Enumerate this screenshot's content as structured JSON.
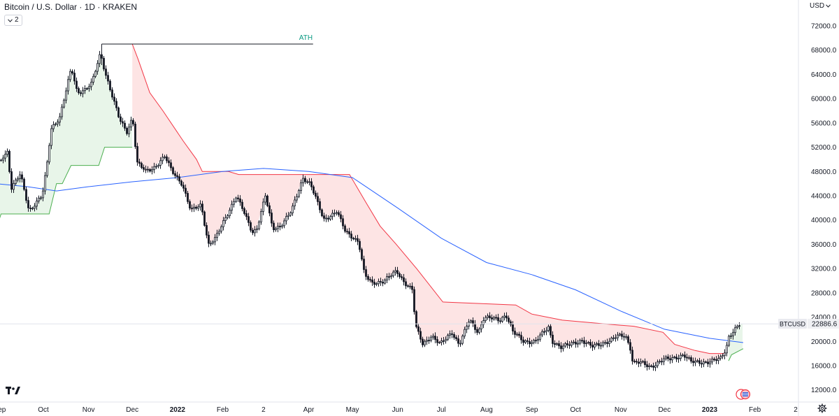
{
  "header": {
    "title": "Bitcoin / U.S. Dollar · 1D · KRAKEN",
    "indicator_count": "2",
    "currency": "USD"
  },
  "price_badge": {
    "symbol": "BTCUSD",
    "value": "22886.6"
  },
  "icons": {
    "logo": "tradingview-logo-icon",
    "chevron": "chevron-down-icon",
    "settings": "gear-icon",
    "flag": "us-flag-icon"
  },
  "colors": {
    "bullish_band": "#4caf50",
    "bearish_band": "#f23645",
    "bull_fill": "#e8f5e9",
    "bear_fill": "#fde4e4",
    "moving_average": "#2962ff",
    "candles": "#131722",
    "ath_label": "#089981"
  },
  "chart_data": {
    "type": "line",
    "title": "Bitcoin / U.S. Dollar · 1D · KRAKEN",
    "ylim": [
      10000,
      74000
    ],
    "y_ticks": [
      "12000.0",
      "16000.0",
      "20000.0",
      "24000.0",
      "28000.0",
      "32000.0",
      "36000.0",
      "40000.0",
      "44000.0",
      "48000.0",
      "52000.0",
      "56000.0",
      "60000.0",
      "64000.0",
      "68000.0",
      "72000.0"
    ],
    "x_ticks": [
      {
        "label": "Sep",
        "date": "2021-09-01"
      },
      {
        "label": "Oct",
        "date": "2021-10-01"
      },
      {
        "label": "Nov",
        "date": "2021-11-01"
      },
      {
        "label": "Dec",
        "date": "2021-12-01"
      },
      {
        "label": "2022",
        "date": "2022-01-01"
      },
      {
        "label": "Feb",
        "date": "2022-02-01"
      },
      {
        "label": "2",
        "date": "2022-03-01"
      },
      {
        "label": "Apr",
        "date": "2022-04-01"
      },
      {
        "label": "May",
        "date": "2022-05-01"
      },
      {
        "label": "Jun",
        "date": "2022-06-01"
      },
      {
        "label": "Jul",
        "date": "2022-07-01"
      },
      {
        "label": "Aug",
        "date": "2022-08-01"
      },
      {
        "label": "Sep",
        "date": "2022-09-01"
      },
      {
        "label": "Oct",
        "date": "2022-10-01"
      },
      {
        "label": "Nov",
        "date": "2022-11-01"
      },
      {
        "label": "Dec",
        "date": "2022-12-01"
      },
      {
        "label": "2023",
        "date": "2023-01-01"
      },
      {
        "label": "Feb",
        "date": "2023-02-01"
      },
      {
        "label": "2",
        "date": "2023-03-01"
      }
    ],
    "price_path": [
      [
        "2021-08-29",
        48000
      ],
      [
        "2021-09-03",
        50500
      ],
      [
        "2021-09-07",
        51500
      ],
      [
        "2021-09-08",
        45000
      ],
      [
        "2021-09-15",
        47500
      ],
      [
        "2021-09-21",
        41500
      ],
      [
        "2021-09-26",
        43000
      ],
      [
        "2021-09-30",
        44000
      ],
      [
        "2021-10-03",
        48500
      ],
      [
        "2021-10-06",
        55000
      ],
      [
        "2021-10-12",
        57000
      ],
      [
        "2021-10-16",
        61000
      ],
      [
        "2021-10-20",
        65000
      ],
      [
        "2021-10-24",
        61000
      ],
      [
        "2021-10-29",
        61500
      ],
      [
        "2021-11-03",
        62500
      ],
      [
        "2021-11-09",
        67500
      ],
      [
        "2021-11-12",
        64500
      ],
      [
        "2021-11-17",
        60500
      ],
      [
        "2021-11-22",
        56500
      ],
      [
        "2021-11-27",
        54500
      ],
      [
        "2021-12-01",
        57000
      ],
      [
        "2021-12-04",
        49500
      ],
      [
        "2021-12-10",
        48000
      ],
      [
        "2021-12-15",
        48500
      ],
      [
        "2021-12-23",
        50500
      ],
      [
        "2021-12-28",
        48000
      ],
      [
        "2022-01-04",
        46000
      ],
      [
        "2022-01-10",
        41500
      ],
      [
        "2022-01-17",
        42500
      ],
      [
        "2022-01-22",
        36000
      ],
      [
        "2022-01-27",
        37000
      ],
      [
        "2022-02-05",
        41500
      ],
      [
        "2022-02-10",
        44000
      ],
      [
        "2022-02-14",
        42000
      ],
      [
        "2022-02-21",
        38000
      ],
      [
        "2022-02-24",
        38500
      ],
      [
        "2022-03-02",
        44000
      ],
      [
        "2022-03-07",
        38500
      ],
      [
        "2022-03-12",
        39000
      ],
      [
        "2022-03-20",
        41500
      ],
      [
        "2022-03-28",
        47000
      ],
      [
        "2022-04-02",
        46000
      ],
      [
        "2022-04-11",
        40000
      ],
      [
        "2022-04-20",
        41500
      ],
      [
        "2022-04-26",
        38000
      ],
      [
        "2022-05-05",
        36500
      ],
      [
        "2022-05-09",
        31000
      ],
      [
        "2022-05-14",
        29500
      ],
      [
        "2022-05-22",
        30000
      ],
      [
        "2022-05-31",
        31500
      ],
      [
        "2022-06-05",
        29900
      ],
      [
        "2022-06-11",
        28500
      ],
      [
        "2022-06-13",
        22500
      ],
      [
        "2022-06-18",
        19500
      ],
      [
        "2022-06-24",
        21000
      ],
      [
        "2022-06-30",
        19500
      ],
      [
        "2022-07-08",
        21500
      ],
      [
        "2022-07-13",
        19500
      ],
      [
        "2022-07-20",
        23500
      ],
      [
        "2022-07-26",
        21500
      ],
      [
        "2022-07-30",
        24000
      ],
      [
        "2022-08-10",
        23500
      ],
      [
        "2022-08-14",
        24500
      ],
      [
        "2022-08-19",
        21500
      ],
      [
        "2022-08-26",
        20000
      ],
      [
        "2022-09-03",
        20000
      ],
      [
        "2022-09-09",
        21500
      ],
      [
        "2022-09-13",
        22500
      ],
      [
        "2022-09-14",
        20200
      ],
      [
        "2022-09-21",
        19000
      ],
      [
        "2022-10-05",
        20200
      ],
      [
        "2022-10-12",
        19100
      ],
      [
        "2022-10-25",
        20200
      ],
      [
        "2022-10-29",
        20800
      ],
      [
        "2022-11-04",
        21000
      ],
      [
        "2022-11-08",
        18500
      ],
      [
        "2022-11-09",
        16500
      ],
      [
        "2022-11-14",
        16500
      ],
      [
        "2022-11-21",
        15800
      ],
      [
        "2022-11-30",
        17000
      ],
      [
        "2022-12-05",
        17100
      ],
      [
        "2022-12-14",
        17800
      ],
      [
        "2022-12-19",
        16600
      ],
      [
        "2022-12-31",
        16600
      ],
      [
        "2023-01-08",
        17100
      ],
      [
        "2023-01-12",
        18800
      ],
      [
        "2023-01-14",
        20900
      ],
      [
        "2023-01-21",
        22700
      ],
      [
        "2023-01-24",
        22900
      ]
    ],
    "ma_path": [
      [
        "2021-08-29",
        46000
      ],
      [
        "2021-09-20",
        45500
      ],
      [
        "2021-10-10",
        44800
      ],
      [
        "2021-11-01",
        45500
      ],
      [
        "2021-12-01",
        46300
      ],
      [
        "2022-01-01",
        47000
      ],
      [
        "2022-02-01",
        48000
      ],
      [
        "2022-03-01",
        48500
      ],
      [
        "2022-04-01",
        48000
      ],
      [
        "2022-05-01",
        47000
      ],
      [
        "2022-06-01",
        42000
      ],
      [
        "2022-07-01",
        37000
      ],
      [
        "2022-08-01",
        33000
      ],
      [
        "2022-09-01",
        31000
      ],
      [
        "2022-10-01",
        28500
      ],
      [
        "2022-11-01",
        25000
      ],
      [
        "2022-12-01",
        22000
      ],
      [
        "2023-01-01",
        20500
      ],
      [
        "2023-01-24",
        19800
      ]
    ],
    "bull_band": [
      [
        "2021-08-29",
        38000
      ],
      [
        "2021-09-02",
        41000
      ],
      [
        "2021-10-05",
        41000
      ],
      [
        "2021-10-10",
        46000
      ],
      [
        "2021-10-14",
        46000
      ],
      [
        "2021-10-20",
        49000
      ],
      [
        "2021-11-08",
        49000
      ],
      [
        "2021-11-12",
        52000
      ],
      [
        "2021-12-01",
        52000
      ]
    ],
    "bear_band": [
      [
        "2021-12-01",
        69000
      ],
      [
        "2021-12-05",
        66500
      ],
      [
        "2021-12-13",
        61000
      ],
      [
        "2021-12-22",
        58000
      ],
      [
        "2022-01-05",
        53000
      ],
      [
        "2022-01-14",
        50000
      ],
      [
        "2022-01-18",
        48000
      ],
      [
        "2022-02-05",
        48000
      ],
      [
        "2022-02-12",
        47500
      ],
      [
        "2022-04-29",
        47500
      ],
      [
        "2022-05-10",
        43000
      ],
      [
        "2022-05-20",
        39000
      ],
      [
        "2022-05-31",
        36000
      ],
      [
        "2022-06-14",
        32000
      ],
      [
        "2022-07-02",
        26500
      ],
      [
        "2022-08-21",
        26000
      ],
      [
        "2022-09-01",
        24500
      ],
      [
        "2022-09-22",
        23500
      ],
      [
        "2022-10-30",
        22700
      ],
      [
        "2022-11-10",
        22500
      ],
      [
        "2022-11-30",
        21500
      ],
      [
        "2022-12-08",
        19500
      ],
      [
        "2022-12-22",
        18500
      ],
      [
        "2023-01-01",
        18000
      ],
      [
        "2023-01-12",
        18000
      ]
    ],
    "bull_band_2023": [
      [
        "2023-01-14",
        16800
      ],
      [
        "2023-01-16",
        17800
      ],
      [
        "2023-01-24",
        18800
      ]
    ],
    "ath": {
      "label": "ATH",
      "value": 69000,
      "from": "2021-11-10",
      "to": "2022-04-04"
    },
    "last_price": 22886.6
  }
}
